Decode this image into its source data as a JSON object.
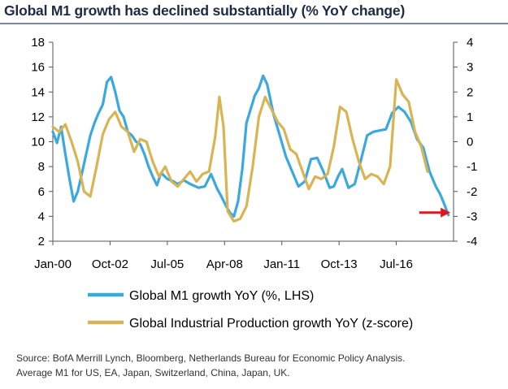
{
  "title": "Global M1 growth has declined substantially (% YoY change)",
  "source_lines": [
    "Source: BofA Merrill Lynch, Bloomberg, Netherlands Bureau for Economic Policy Analysis.",
    "Average M1 for US, EA, Japan, Switzerland, China, Japan, UK."
  ],
  "colors": {
    "m1": "#3aa9e0",
    "ip": "#d8b452",
    "arrow": "#e0181b",
    "axis": "#555555"
  },
  "chart_data": {
    "type": "line",
    "x_range": [
      "2000-01",
      "2019-04"
    ],
    "x_tick_labels": [
      "Jan-00",
      "Oct-02",
      "Jul-05",
      "Apr-08",
      "Jan-11",
      "Oct-13",
      "Jul-16"
    ],
    "x_tick_years": [
      2000.0,
      2002.75,
      2005.5,
      2008.25,
      2011.0,
      2013.75,
      2016.5
    ],
    "y_left": {
      "ticks": [
        2,
        4,
        6,
        8,
        10,
        12,
        14,
        16,
        18
      ],
      "lim": [
        2,
        18
      ]
    },
    "y_right": {
      "ticks": [
        -4,
        -3,
        -2,
        -1,
        0,
        1,
        2,
        3,
        4
      ],
      "lim": [
        -4,
        4
      ]
    },
    "grid": false,
    "annotations": [
      {
        "type": "arrow",
        "from": [
          2017.6,
          4.3
        ],
        "to": [
          2019.1,
          4.3
        ]
      }
    ],
    "series": [
      {
        "name": "Global M1 growth YoY (%, LHS)",
        "axis": "left",
        "x": [
          2000.0,
          2000.2,
          2000.4,
          2000.6,
          2000.8,
          2001.0,
          2001.2,
          2001.4,
          2001.6,
          2001.8,
          2002.0,
          2002.2,
          2002.4,
          2002.6,
          2002.8,
          2003.0,
          2003.2,
          2003.4,
          2003.6,
          2003.8,
          2004.0,
          2004.2,
          2004.4,
          2004.6,
          2004.8,
          2005.0,
          2005.2,
          2005.5,
          2005.8,
          2006.0,
          2006.3,
          2006.6,
          2007.0,
          2007.3,
          2007.6,
          2007.9,
          2008.1,
          2008.3,
          2008.5,
          2008.7,
          2008.9,
          2009.1,
          2009.3,
          2009.5,
          2009.7,
          2009.9,
          2010.1,
          2010.3,
          2010.6,
          2010.9,
          2011.2,
          2011.5,
          2011.8,
          2012.1,
          2012.4,
          2012.7,
          2013.0,
          2013.3,
          2013.5,
          2013.7,
          2013.9,
          2014.2,
          2014.5,
          2014.8,
          2015.1,
          2015.4,
          2015.7,
          2016.0,
          2016.3,
          2016.6,
          2016.9,
          2017.2,
          2017.5,
          2017.8,
          2018.1,
          2018.4,
          2018.6,
          2018.8,
          2019.0
        ],
        "values": [
          10.8,
          9.9,
          11.2,
          9.0,
          7.0,
          5.2,
          6.0,
          7.5,
          9.0,
          10.5,
          11.5,
          12.3,
          13.0,
          14.8,
          15.2,
          14.0,
          12.5,
          12.0,
          10.8,
          10.5,
          10.0,
          9.8,
          9.0,
          8.0,
          7.2,
          6.5,
          7.5,
          7.0,
          6.8,
          6.6,
          6.9,
          6.6,
          6.3,
          6.4,
          7.4,
          6.2,
          5.6,
          4.9,
          4.3,
          4.0,
          5.2,
          7.8,
          11.5,
          12.6,
          13.7,
          14.3,
          15.3,
          14.6,
          12.2,
          10.5,
          8.8,
          7.6,
          6.4,
          6.8,
          8.6,
          8.7,
          7.6,
          6.3,
          6.4,
          7.2,
          7.8,
          6.3,
          6.6,
          8.5,
          10.5,
          10.8,
          10.9,
          11.0,
          12.3,
          12.8,
          12.4,
          11.6,
          10.2,
          9.5,
          7.6,
          6.4,
          5.8,
          5.0,
          4.1
        ]
      },
      {
        "name": "Global Industrial Production growth YoY (z-score)",
        "axis": "right",
        "x": [
          2000.0,
          2000.3,
          2000.6,
          2000.9,
          2001.2,
          2001.5,
          2001.8,
          2002.1,
          2002.4,
          2002.7,
          2003.0,
          2003.3,
          2003.6,
          2003.9,
          2004.2,
          2004.5,
          2004.8,
          2005.1,
          2005.4,
          2005.7,
          2006.0,
          2006.3,
          2006.6,
          2006.9,
          2007.2,
          2007.5,
          2007.8,
          2008.0,
          2008.2,
          2008.4,
          2008.7,
          2009.0,
          2009.3,
          2009.6,
          2009.9,
          2010.2,
          2010.5,
          2010.8,
          2011.1,
          2011.4,
          2011.7,
          2012.0,
          2012.3,
          2012.6,
          2012.9,
          2013.2,
          2013.5,
          2013.8,
          2014.1,
          2014.4,
          2014.7,
          2015.0,
          2015.3,
          2015.6,
          2015.9,
          2016.2,
          2016.5,
          2016.8,
          2017.1,
          2017.4,
          2017.7,
          2018.0
        ],
        "values": [
          0.6,
          0.4,
          0.7,
          0.0,
          -0.8,
          -2.0,
          -2.2,
          -1.0,
          0.3,
          0.9,
          1.2,
          0.6,
          0.4,
          -0.4,
          0.1,
          0.0,
          -0.8,
          -1.4,
          -1.0,
          -1.6,
          -1.8,
          -1.5,
          -1.2,
          -1.6,
          -1.3,
          -1.2,
          0.2,
          1.8,
          0.6,
          -2.8,
          -3.2,
          -3.1,
          -2.6,
          -1.0,
          1.0,
          1.8,
          1.3,
          0.8,
          0.5,
          -0.3,
          -0.5,
          -1.2,
          -1.9,
          -1.4,
          -1.5,
          -1.3,
          -0.2,
          1.4,
          1.2,
          0.1,
          -0.8,
          -1.5,
          -1.3,
          -1.4,
          -1.7,
          -1.0,
          2.5,
          1.9,
          1.6,
          0.4,
          -0.2,
          -1.2
        ]
      }
    ]
  }
}
